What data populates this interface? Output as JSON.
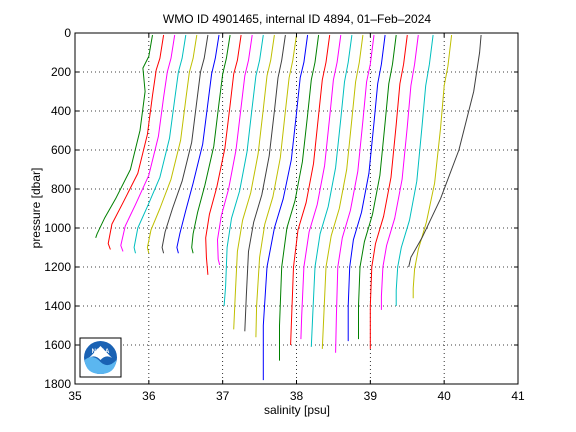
{
  "chart_data": {
    "type": "line",
    "title": "WMO ID 4901465, internal ID 4894, 01–Feb–2024",
    "xlabel": "salinity [psu]",
    "ylabel": "pressure [dbar]",
    "xlim": [
      35,
      41
    ],
    "ylim": [
      0,
      1800
    ],
    "y_reversed": true,
    "grid": true,
    "xticks": [
      "35",
      "36",
      "37",
      "38",
      "39",
      "40",
      "41"
    ],
    "yticks": [
      "0",
      "200",
      "400",
      "600",
      "800",
      "1000",
      "1200",
      "1400",
      "1600",
      "1800"
    ],
    "logo": "NOAA",
    "series": [
      {
        "color": "#008000",
        "points": [
          [
            36.05,
            10
          ],
          [
            36.0,
            120
          ],
          [
            35.92,
            180
          ],
          [
            35.95,
            300
          ],
          [
            35.88,
            500
          ],
          [
            35.75,
            700
          ],
          [
            35.55,
            850
          ],
          [
            35.4,
            950
          ],
          [
            35.3,
            1030
          ],
          [
            35.28,
            1050
          ]
        ]
      },
      {
        "color": "#ff0000",
        "points": [
          [
            36.2,
            10
          ],
          [
            36.15,
            130
          ],
          [
            36.1,
            190
          ],
          [
            36.05,
            320
          ],
          [
            35.98,
            520
          ],
          [
            35.85,
            720
          ],
          [
            35.65,
            870
          ],
          [
            35.5,
            980
          ],
          [
            35.45,
            1080
          ],
          [
            35.48,
            1110
          ]
        ]
      },
      {
        "color": "#ff00ff",
        "points": [
          [
            36.35,
            10
          ],
          [
            36.3,
            130
          ],
          [
            36.25,
            200
          ],
          [
            36.2,
            330
          ],
          [
            36.13,
            530
          ],
          [
            36.0,
            730
          ],
          [
            35.82,
            880
          ],
          [
            35.68,
            990
          ],
          [
            35.62,
            1090
          ],
          [
            35.65,
            1120
          ]
        ]
      },
      {
        "color": "#00bfbf",
        "points": [
          [
            36.5,
            10
          ],
          [
            36.45,
            130
          ],
          [
            36.4,
            200
          ],
          [
            36.35,
            340
          ],
          [
            36.28,
            540
          ],
          [
            36.15,
            740
          ],
          [
            35.98,
            890
          ],
          [
            35.85,
            1000
          ],
          [
            35.8,
            1100
          ],
          [
            35.82,
            1130
          ]
        ]
      },
      {
        "color": "#bfbf00",
        "points": [
          [
            36.65,
            10
          ],
          [
            36.6,
            130
          ],
          [
            36.55,
            200
          ],
          [
            36.5,
            340
          ],
          [
            36.43,
            550
          ],
          [
            36.3,
            750
          ],
          [
            36.15,
            900
          ],
          [
            36.03,
            1010
          ],
          [
            35.98,
            1100
          ],
          [
            36.0,
            1130
          ]
        ]
      },
      {
        "color": "#404040",
        "points": [
          [
            36.8,
            10
          ],
          [
            36.75,
            130
          ],
          [
            36.7,
            200
          ],
          [
            36.65,
            350
          ],
          [
            36.58,
            560
          ],
          [
            36.45,
            760
          ],
          [
            36.32,
            900
          ],
          [
            36.22,
            1020
          ],
          [
            36.18,
            1100
          ],
          [
            36.2,
            1130
          ]
        ]
      },
      {
        "color": "#0000ff",
        "points": [
          [
            36.95,
            10
          ],
          [
            36.9,
            130
          ],
          [
            36.85,
            210
          ],
          [
            36.8,
            360
          ],
          [
            36.73,
            570
          ],
          [
            36.6,
            770
          ],
          [
            36.5,
            910
          ],
          [
            36.42,
            1030
          ],
          [
            36.38,
            1100
          ],
          [
            36.4,
            1130
          ]
        ]
      },
      {
        "color": "#008000",
        "points": [
          [
            37.1,
            10
          ],
          [
            37.05,
            130
          ],
          [
            37.0,
            210
          ],
          [
            36.95,
            360
          ],
          [
            36.88,
            580
          ],
          [
            36.76,
            780
          ],
          [
            36.66,
            920
          ],
          [
            36.6,
            1030
          ],
          [
            36.58,
            1100
          ],
          [
            36.6,
            1130
          ]
        ]
      },
      {
        "color": "#ff0000",
        "points": [
          [
            37.25,
            10
          ],
          [
            37.2,
            140
          ],
          [
            37.15,
            210
          ],
          [
            37.1,
            370
          ],
          [
            37.03,
            590
          ],
          [
            36.92,
            790
          ],
          [
            36.82,
            930
          ],
          [
            36.77,
            1050
          ],
          [
            36.78,
            1150
          ],
          [
            36.8,
            1240
          ]
        ]
      },
      {
        "color": "#ff00ff",
        "points": [
          [
            37.4,
            10
          ],
          [
            37.35,
            140
          ],
          [
            37.3,
            220
          ],
          [
            37.25,
            380
          ],
          [
            37.18,
            600
          ],
          [
            37.08,
            800
          ],
          [
            36.98,
            940
          ],
          [
            36.93,
            1060
          ],
          [
            36.94,
            1160
          ],
          [
            36.96,
            1190
          ]
        ]
      },
      {
        "color": "#00bfbf",
        "points": [
          [
            37.55,
            10
          ],
          [
            37.5,
            140
          ],
          [
            37.45,
            220
          ],
          [
            37.4,
            380
          ],
          [
            37.33,
            610
          ],
          [
            37.23,
            810
          ],
          [
            37.12,
            950
          ],
          [
            37.06,
            1100
          ],
          [
            37.04,
            1300
          ],
          [
            37.02,
            1400
          ]
        ]
      },
      {
        "color": "#bfbf00",
        "points": [
          [
            37.7,
            10
          ],
          [
            37.65,
            140
          ],
          [
            37.6,
            220
          ],
          [
            37.55,
            390
          ],
          [
            37.48,
            620
          ],
          [
            37.38,
            820
          ],
          [
            37.27,
            960
          ],
          [
            37.2,
            1120
          ],
          [
            37.17,
            1350
          ],
          [
            37.15,
            1520
          ]
        ]
      },
      {
        "color": "#404040",
        "points": [
          [
            37.85,
            10
          ],
          [
            37.8,
            140
          ],
          [
            37.75,
            230
          ],
          [
            37.7,
            400
          ],
          [
            37.63,
            630
          ],
          [
            37.53,
            830
          ],
          [
            37.42,
            970
          ],
          [
            37.35,
            1120
          ],
          [
            37.32,
            1350
          ],
          [
            37.3,
            1530
          ]
        ]
      },
      {
        "color": "#bfbf00",
        "points": [
          [
            38.0,
            10
          ],
          [
            37.95,
            140
          ],
          [
            37.9,
            230
          ],
          [
            37.85,
            400
          ],
          [
            37.78,
            640
          ],
          [
            37.68,
            840
          ],
          [
            37.57,
            980
          ],
          [
            37.5,
            1150
          ],
          [
            37.46,
            1400
          ],
          [
            37.45,
            1560
          ]
        ]
      },
      {
        "color": "#0000ff",
        "points": [
          [
            38.15,
            10
          ],
          [
            38.1,
            150
          ],
          [
            38.05,
            230
          ],
          [
            38.0,
            410
          ],
          [
            37.93,
            650
          ],
          [
            37.82,
            850
          ],
          [
            37.7,
            1000
          ],
          [
            37.6,
            1200
          ],
          [
            37.55,
            1500
          ],
          [
            37.55,
            1780
          ]
        ]
      },
      {
        "color": "#008000",
        "points": [
          [
            38.3,
            10
          ],
          [
            38.25,
            150
          ],
          [
            38.2,
            240
          ],
          [
            38.15,
            420
          ],
          [
            38.08,
            660
          ],
          [
            37.98,
            860
          ],
          [
            37.87,
            1000
          ],
          [
            37.8,
            1200
          ],
          [
            37.77,
            1500
          ],
          [
            37.77,
            1680
          ]
        ]
      },
      {
        "color": "#ff0000",
        "points": [
          [
            38.45,
            10
          ],
          [
            38.4,
            150
          ],
          [
            38.35,
            240
          ],
          [
            38.3,
            420
          ],
          [
            38.23,
            670
          ],
          [
            38.13,
            870
          ],
          [
            38.02,
            1010
          ],
          [
            37.96,
            1200
          ],
          [
            37.93,
            1500
          ],
          [
            37.92,
            1600
          ]
        ]
      },
      {
        "color": "#ff00ff",
        "points": [
          [
            38.6,
            10
          ],
          [
            38.55,
            150
          ],
          [
            38.5,
            240
          ],
          [
            38.45,
            430
          ],
          [
            38.38,
            680
          ],
          [
            38.28,
            880
          ],
          [
            38.17,
            1020
          ],
          [
            38.1,
            1200
          ],
          [
            38.07,
            1450
          ],
          [
            38.06,
            1570
          ]
        ]
      },
      {
        "color": "#00bfbf",
        "points": [
          [
            38.75,
            10
          ],
          [
            38.7,
            150
          ],
          [
            38.65,
            250
          ],
          [
            38.6,
            440
          ],
          [
            38.53,
            690
          ],
          [
            38.43,
            890
          ],
          [
            38.32,
            1030
          ],
          [
            38.25,
            1200
          ],
          [
            38.22,
            1450
          ],
          [
            38.2,
            1610
          ]
        ]
      },
      {
        "color": "#bfbf00",
        "points": [
          [
            38.9,
            10
          ],
          [
            38.85,
            150
          ],
          [
            38.8,
            250
          ],
          [
            38.75,
            440
          ],
          [
            38.68,
            700
          ],
          [
            38.58,
            900
          ],
          [
            38.47,
            1040
          ],
          [
            38.4,
            1200
          ],
          [
            38.37,
            1450
          ],
          [
            38.35,
            1620
          ]
        ]
      },
      {
        "color": "#ff00ff",
        "points": [
          [
            39.05,
            10
          ],
          [
            39.0,
            160
          ],
          [
            38.95,
            250
          ],
          [
            38.9,
            450
          ],
          [
            38.83,
            710
          ],
          [
            38.73,
            910
          ],
          [
            38.62,
            1050
          ],
          [
            38.56,
            1200
          ],
          [
            38.54,
            1450
          ],
          [
            38.53,
            1640
          ]
        ]
      },
      {
        "color": "#0000ff",
        "points": [
          [
            39.2,
            10
          ],
          [
            39.15,
            160
          ],
          [
            39.1,
            260
          ],
          [
            39.05,
            460
          ],
          [
            38.98,
            720
          ],
          [
            38.88,
            920
          ],
          [
            38.77,
            1060
          ],
          [
            38.72,
            1200
          ],
          [
            38.7,
            1400
          ],
          [
            38.7,
            1580
          ]
        ]
      },
      {
        "color": "#008000",
        "points": [
          [
            39.35,
            10
          ],
          [
            39.3,
            160
          ],
          [
            39.25,
            260
          ],
          [
            39.2,
            460
          ],
          [
            39.13,
            730
          ],
          [
            39.03,
            930
          ],
          [
            38.92,
            1070
          ],
          [
            38.86,
            1200
          ],
          [
            38.84,
            1400
          ],
          [
            38.84,
            1570
          ]
        ]
      },
      {
        "color": "#ff0000",
        "points": [
          [
            39.5,
            10
          ],
          [
            39.45,
            160
          ],
          [
            39.4,
            260
          ],
          [
            39.35,
            470
          ],
          [
            39.28,
            740
          ],
          [
            39.18,
            940
          ],
          [
            39.07,
            1080
          ],
          [
            39.02,
            1200
          ],
          [
            39.0,
            1400
          ],
          [
            39.0,
            1620
          ]
        ]
      },
      {
        "color": "#ff00ff",
        "points": [
          [
            39.65,
            10
          ],
          [
            39.6,
            160
          ],
          [
            39.55,
            270
          ],
          [
            39.5,
            480
          ],
          [
            39.43,
            750
          ],
          [
            39.33,
            950
          ],
          [
            39.22,
            1090
          ],
          [
            39.17,
            1200
          ],
          [
            39.15,
            1350
          ],
          [
            39.15,
            1420
          ]
        ]
      },
      {
        "color": "#00bfbf",
        "points": [
          [
            39.85,
            10
          ],
          [
            39.8,
            160
          ],
          [
            39.75,
            270
          ],
          [
            39.7,
            480
          ],
          [
            39.63,
            760
          ],
          [
            39.53,
            960
          ],
          [
            39.42,
            1100
          ],
          [
            39.37,
            1200
          ],
          [
            39.35,
            1320
          ],
          [
            39.35,
            1400
          ]
        ]
      },
      {
        "color": "#bfbf00",
        "points": [
          [
            40.1,
            10
          ],
          [
            40.05,
            170
          ],
          [
            40.0,
            270
          ],
          [
            39.95,
            490
          ],
          [
            39.87,
            770
          ],
          [
            39.76,
            970
          ],
          [
            39.65,
            1110
          ],
          [
            39.6,
            1210
          ],
          [
            39.58,
            1310
          ],
          [
            39.58,
            1360
          ]
        ]
      },
      {
        "color": "#404040",
        "points": [
          [
            40.5,
            10
          ],
          [
            40.48,
            100
          ],
          [
            40.4,
            300
          ],
          [
            40.2,
            600
          ],
          [
            39.95,
            850
          ],
          [
            39.7,
            1050
          ],
          [
            39.55,
            1150
          ],
          [
            39.52,
            1200
          ]
        ]
      }
    ]
  }
}
